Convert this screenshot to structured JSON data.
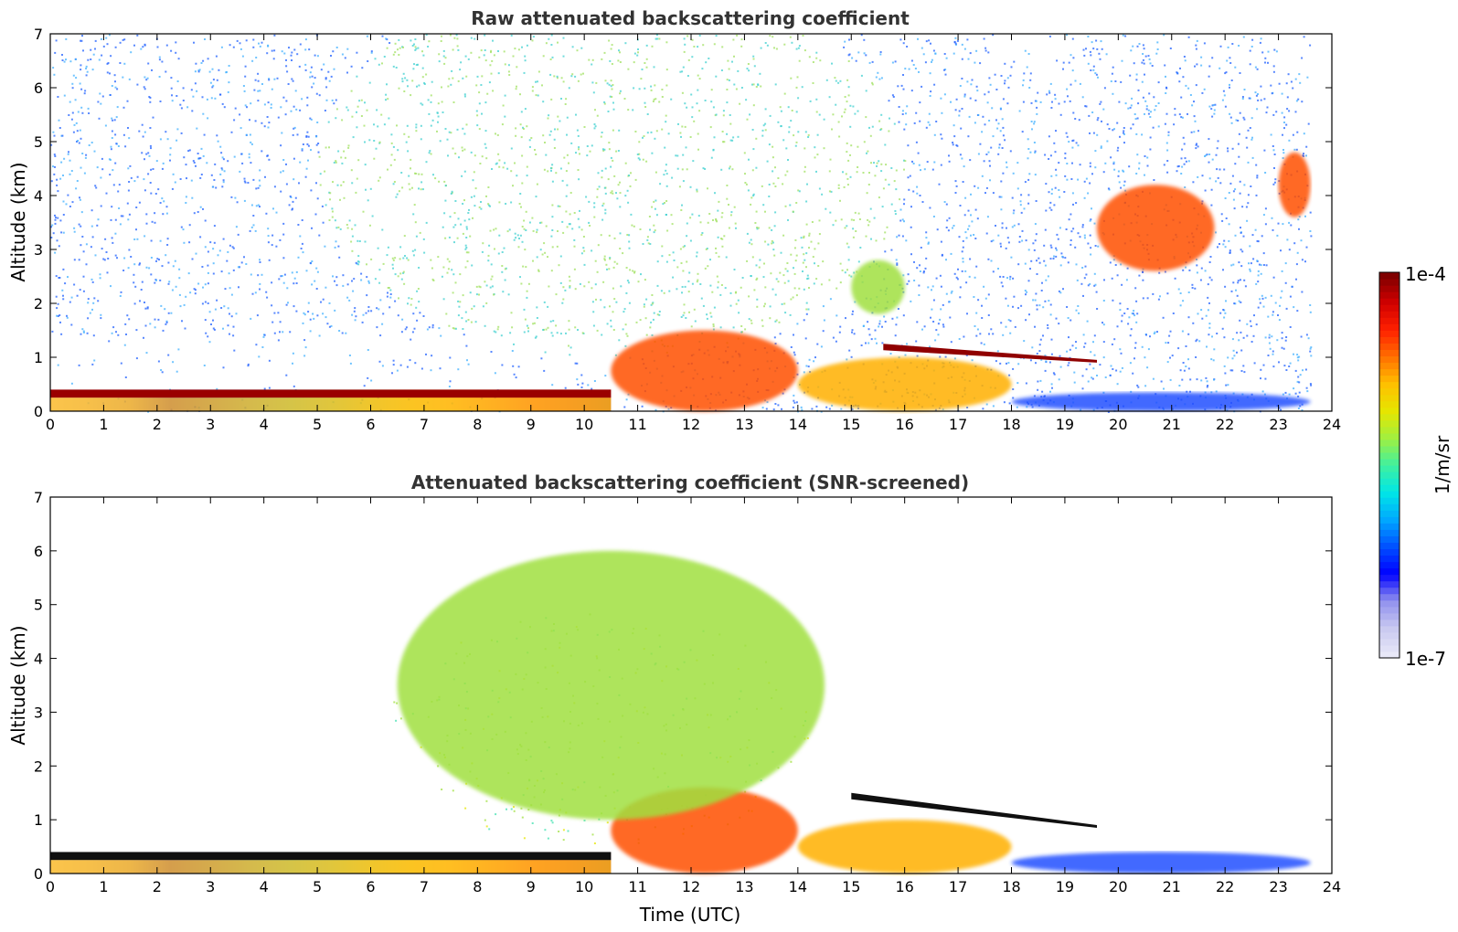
{
  "chart_data": [
    {
      "type": "heatmap",
      "title": "Raw attenuated backscattering coefficient",
      "xlabel": "",
      "ylabel": "Altitude (km)",
      "xlim": [
        0,
        24
      ],
      "ylim": [
        0,
        7
      ],
      "xticks": [
        0,
        1,
        2,
        3,
        4,
        5,
        6,
        7,
        8,
        9,
        10,
        11,
        12,
        13,
        14,
        15,
        16,
        17,
        18,
        19,
        20,
        21,
        22,
        23,
        24
      ],
      "yticks": [
        0,
        1,
        2,
        3,
        4,
        5,
        6,
        7
      ],
      "grid": false,
      "features": [
        {
          "name": "boundary-layer",
          "t_start": 0,
          "t_end": 10.5,
          "alt_km": [
            0,
            0.4
          ],
          "level": "high"
        },
        {
          "name": "residual-layer",
          "t_start": 10.5,
          "t_end": 14,
          "alt_km": [
            0,
            1.5
          ],
          "level": "high"
        },
        {
          "name": "aerosol-plume-afternoon",
          "t_start": 14,
          "t_end": 18,
          "alt_km": [
            0,
            1.0
          ],
          "level": "medium-high"
        },
        {
          "name": "cloud-layer-1",
          "t_start": 15.6,
          "t_end": 19.6,
          "alt_km": [
            0.9,
            1.25
          ],
          "level": "max"
        },
        {
          "name": "elevated-aerosol",
          "t_start": 15.0,
          "t_end": 16.0,
          "alt_km": [
            1.8,
            2.8
          ],
          "level": "medium"
        },
        {
          "name": "cloud-layer-2",
          "t_start": 19.6,
          "t_end": 21.8,
          "alt_km": [
            2.6,
            4.2
          ],
          "level": "high"
        },
        {
          "name": "cloud-layer-3",
          "t_start": 23.0,
          "t_end": 23.6,
          "alt_km": [
            3.6,
            4.8
          ],
          "level": "high"
        },
        {
          "name": "night-boundary-layer",
          "t_start": 18,
          "t_end": 23.6,
          "alt_km": [
            0,
            0.35
          ],
          "level": "low"
        }
      ]
    },
    {
      "type": "heatmap",
      "title": "Attenuated backscattering coefficient (SNR-screened)",
      "xlabel": "Time (UTC)",
      "ylabel": "Altitude (km)",
      "xlim": [
        0,
        24
      ],
      "ylim": [
        0,
        7
      ],
      "xticks": [
        0,
        1,
        2,
        3,
        4,
        5,
        6,
        7,
        8,
        9,
        10,
        11,
        12,
        13,
        14,
        15,
        16,
        17,
        18,
        19,
        20,
        21,
        22,
        23,
        24
      ],
      "yticks": [
        0,
        1,
        2,
        3,
        4,
        5,
        6,
        7
      ],
      "grid": false,
      "features": [
        {
          "name": "boundary-layer",
          "t_start": 0,
          "t_end": 10.5,
          "alt_km": [
            0,
            0.4
          ],
          "level": "high"
        },
        {
          "name": "residual-layer",
          "t_start": 10.5,
          "t_end": 14,
          "alt_km": [
            0,
            1.6
          ],
          "level": "high"
        },
        {
          "name": "aerosol-plume-afternoon",
          "t_start": 14,
          "t_end": 18,
          "alt_km": [
            0,
            1.0
          ],
          "level": "medium-high"
        },
        {
          "name": "cloud-layer-1",
          "t_start": 15.0,
          "t_end": 19.6,
          "alt_km": [
            0.85,
            1.5
          ],
          "level": "max"
        },
        {
          "name": "free-troposphere-noise",
          "t_start": 6.5,
          "t_end": 14.5,
          "alt_km": [
            1.0,
            6.0
          ],
          "level": "medium"
        },
        {
          "name": "night-boundary-layer",
          "t_start": 18,
          "t_end": 23.6,
          "alt_km": [
            0,
            0.4
          ],
          "level": "low"
        }
      ]
    }
  ],
  "colorbar": {
    "label": "1/m/sr",
    "max_label": "1e-4",
    "min_label": "1e-7",
    "colors": [
      "#e8e8f8",
      "#c8c8f0",
      "#9090ee",
      "#0000ff",
      "#0050ff",
      "#00a8ff",
      "#00e6e6",
      "#40f0a0",
      "#a0f040",
      "#e6e600",
      "#ffc000",
      "#ff7000",
      "#ff2000",
      "#d00000",
      "#800000"
    ]
  }
}
